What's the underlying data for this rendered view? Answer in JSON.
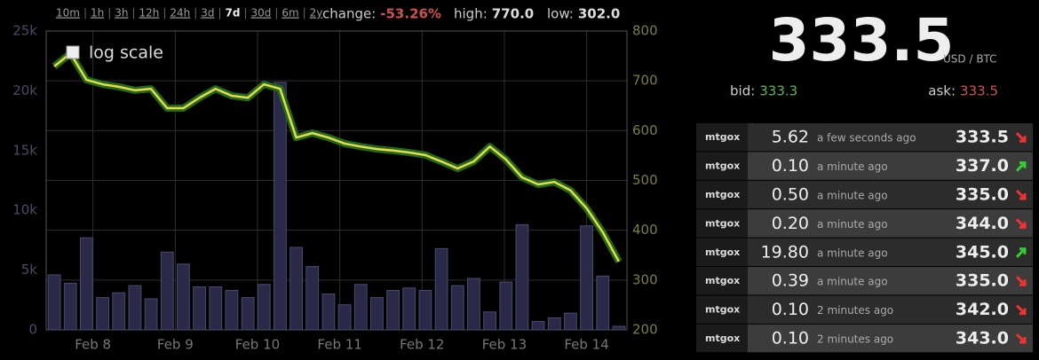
{
  "nav": {
    "ranges": [
      "10m",
      "1h",
      "3h",
      "12h",
      "24h",
      "3d",
      "7d",
      "30d",
      "6m",
      "2y"
    ],
    "active": "7d",
    "change_label": "change:",
    "change": "-53.26%",
    "high_label": "high:",
    "high": "770.0",
    "low_label": "low:",
    "low": "302.0"
  },
  "chart_data": {
    "type": "bar",
    "log_scale_label": "log scale",
    "log_scale": false,
    "grid": true,
    "categories": [
      null,
      null,
      null,
      null,
      null,
      null,
      null,
      null,
      null,
      null,
      null,
      null,
      null,
      null,
      null,
      null,
      null,
      null,
      null,
      null,
      null,
      null,
      null,
      null,
      null,
      null,
      null,
      null,
      null,
      null,
      null,
      null,
      null,
      null,
      null,
      null
    ],
    "xlim": [
      0,
      36
    ],
    "xticks": [
      {
        "value": 2.9,
        "label": "Feb 8"
      },
      {
        "value": 8.0,
        "label": "Feb 9"
      },
      {
        "value": 13.1,
        "label": "Feb 10"
      },
      {
        "value": 18.2,
        "label": "Feb 11"
      },
      {
        "value": 23.3,
        "label": "Feb 12"
      },
      {
        "value": 28.4,
        "label": "Feb 13"
      },
      {
        "value": 33.5,
        "label": "Feb 14"
      }
    ],
    "ylim": [
      0,
      25000
    ],
    "yticks": [
      0,
      {
        "value": 5000,
        "label": "5k"
      },
      {
        "value": 10000,
        "label": "10k"
      },
      {
        "value": 15000,
        "label": "15k"
      },
      {
        "value": 20000,
        "label": "20k"
      },
      {
        "value": 25000,
        "label": "25k"
      }
    ],
    "y2lim": [
      200,
      800
    ],
    "y2ticks": [
      200,
      300,
      400,
      500,
      600,
      700,
      800
    ],
    "series": [
      {
        "type": "bar",
        "color": "#2a2a48",
        "values": [
          4600,
          3900,
          7700,
          2700,
          3100,
          3700,
          2600,
          6500,
          5500,
          3600,
          3600,
          3300,
          2700,
          3800,
          20700,
          6900,
          5300,
          3000,
          2100,
          3800,
          2700,
          3300,
          3500,
          3300,
          6800,
          3700,
          4300,
          1500,
          4000,
          8800,
          700,
          1000,
          1400,
          8700,
          4500,
          300
        ]
      },
      {
        "type": "line",
        "axis": "y2",
        "color": "#e8d84a",
        "values": [
          729,
          755,
          702,
          693,
          688,
          681,
          684,
          645,
          645,
          666,
          684,
          670,
          666,
          693,
          684,
          586,
          595,
          586,
          574,
          568,
          563,
          560,
          556,
          551,
          538,
          524,
          538,
          568,
          542,
          506,
          492,
          497,
          480,
          444,
          396,
          337
        ]
      }
    ]
  },
  "ticker": {
    "price": "333.5",
    "unit": "USD / BTC",
    "bid_label": "bid:",
    "bid": "333.3",
    "ask_label": "ask:",
    "ask": "333.5"
  },
  "trades": {
    "rows": [
      {
        "exchange": "mtgox",
        "amount": "5.62",
        "time": "a few seconds ago",
        "price": "333.5",
        "direction": "down"
      },
      {
        "exchange": "mtgox",
        "amount": "0.10",
        "time": "a minute ago",
        "price": "337.0",
        "direction": "up"
      },
      {
        "exchange": "mtgox",
        "amount": "0.50",
        "time": "a minute ago",
        "price": "335.0",
        "direction": "down"
      },
      {
        "exchange": "mtgox",
        "amount": "0.20",
        "time": "a minute ago",
        "price": "344.0",
        "direction": "down"
      },
      {
        "exchange": "mtgox",
        "amount": "19.80",
        "time": "a minute ago",
        "price": "345.0",
        "direction": "up"
      },
      {
        "exchange": "mtgox",
        "amount": "0.39",
        "time": "a minute ago",
        "price": "335.0",
        "direction": "down"
      },
      {
        "exchange": "mtgox",
        "amount": "0.10",
        "time": "2 minutes ago",
        "price": "342.0",
        "direction": "down"
      },
      {
        "exchange": "mtgox",
        "amount": "0.10",
        "time": "2 minutes ago",
        "price": "343.0",
        "direction": "down"
      }
    ]
  }
}
